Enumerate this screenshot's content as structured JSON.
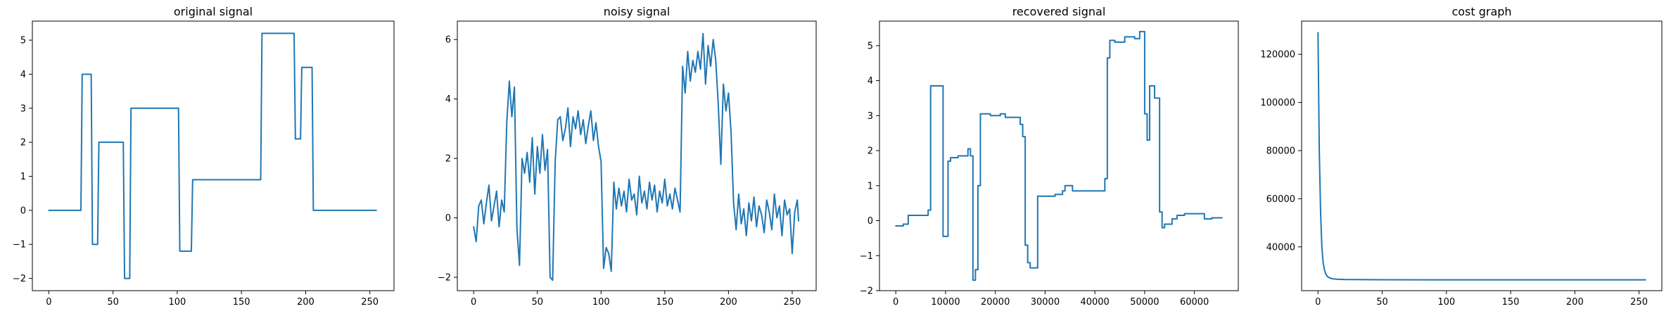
{
  "chart_data": [
    {
      "type": "line",
      "title": "original signal",
      "color": "#1f77b4",
      "xlim": [
        -12.8,
        268.8
      ],
      "ylim": [
        -2.36,
        5.56
      ],
      "xticks": [
        0,
        50,
        100,
        150,
        200,
        250
      ],
      "yticks": [
        -2,
        -1,
        0,
        1,
        2,
        3,
        4,
        5
      ],
      "grid": false,
      "x": [
        0,
        25,
        26,
        33,
        34,
        38,
        39,
        58,
        59,
        63,
        64,
        101,
        102,
        111,
        112,
        165,
        166,
        191,
        192,
        196,
        197,
        205,
        206,
        255
      ],
      "y": [
        0,
        0,
        4,
        4,
        -1,
        -1,
        2,
        2,
        -2,
        -2,
        3,
        3,
        -1.2,
        -1.2,
        0.9,
        0.9,
        5.2,
        5.2,
        2.1,
        2.1,
        4.2,
        4.2,
        0,
        0
      ]
    },
    {
      "type": "line",
      "title": "noisy signal",
      "color": "#1f77b4",
      "xlim": [
        -12.8,
        268.8
      ],
      "ylim": [
        -2.45,
        6.62
      ],
      "xticks": [
        0,
        50,
        100,
        150,
        200,
        250
      ],
      "yticks": [
        -2,
        0,
        2,
        4,
        6
      ],
      "grid": false,
      "x": [
        0,
        2,
        4,
        6,
        8,
        10,
        12,
        14,
        16,
        18,
        20,
        22,
        24,
        26,
        28,
        30,
        32,
        34,
        36,
        38,
        40,
        42,
        44,
        46,
        48,
        50,
        52,
        54,
        56,
        58,
        60,
        62,
        64,
        66,
        68,
        70,
        72,
        74,
        76,
        78,
        80,
        82,
        84,
        86,
        88,
        90,
        92,
        94,
        96,
        98,
        100,
        102,
        104,
        106,
        108,
        110,
        112,
        114,
        116,
        118,
        120,
        122,
        124,
        126,
        128,
        130,
        132,
        134,
        136,
        138,
        140,
        142,
        144,
        146,
        148,
        150,
        152,
        154,
        156,
        158,
        160,
        162,
        164,
        166,
        168,
        170,
        172,
        174,
        176,
        178,
        180,
        182,
        184,
        186,
        188,
        190,
        192,
        194,
        196,
        198,
        200,
        202,
        204,
        206,
        208,
        210,
        212,
        214,
        216,
        218,
        220,
        222,
        224,
        226,
        228,
        230,
        232,
        234,
        236,
        238,
        240,
        242,
        244,
        246,
        248,
        250,
        252,
        254,
        255
      ],
      "y": [
        -0.3,
        -0.8,
        0.4,
        0.6,
        -0.2,
        0.5,
        1.1,
        -0.1,
        0.4,
        0.9,
        -0.3,
        0.6,
        0.2,
        3.2,
        4.6,
        3.4,
        4.4,
        -0.4,
        -1.6,
        2.0,
        1.5,
        2.2,
        1.2,
        2.7,
        0.8,
        2.4,
        1.5,
        2.8,
        1.6,
        2.3,
        -2.0,
        -2.1,
        1.9,
        3.3,
        3.4,
        2.6,
        3.0,
        3.7,
        2.4,
        3.4,
        3.0,
        3.6,
        2.8,
        3.3,
        2.5,
        3.1,
        3.6,
        2.6,
        3.2,
        2.4,
        1.9,
        -1.7,
        -1.0,
        -1.2,
        -1.8,
        1.2,
        0.3,
        1.0,
        0.4,
        0.9,
        0.2,
        1.3,
        0.6,
        0.8,
        0.1,
        1.4,
        0.5,
        0.9,
        0.3,
        1.2,
        0.6,
        1.1,
        0.2,
        0.9,
        0.5,
        1.3,
        0.4,
        0.8,
        0.3,
        1.0,
        0.6,
        0.2,
        5.1,
        4.2,
        5.6,
        4.6,
        5.3,
        4.9,
        5.6,
        5.0,
        6.2,
        4.5,
        5.8,
        5.1,
        6.0,
        5.3,
        3.8,
        1.8,
        4.5,
        3.6,
        4.2,
        2.9,
        0.5,
        -0.4,
        0.8,
        -0.2,
        0.3,
        -0.6,
        0.5,
        -0.1,
        0.7,
        -0.3,
        0.4,
        0.1,
        -0.5,
        0.6,
        0.2,
        -0.4,
        0.8,
        0.0,
        0.4,
        -0.6,
        0.6,
        0.1,
        0.3,
        -1.2,
        0.2,
        0.6,
        -0.1
      ],
      "series_note": ""
    },
    {
      "type": "line",
      "title": "recovered signal",
      "color": "#1f77b4",
      "xlim": [
        -3277,
        68813
      ],
      "ylim": [
        -2.0,
        5.7
      ],
      "xticks": [
        0,
        10000,
        20000,
        30000,
        40000,
        50000,
        60000
      ],
      "yticks": [
        -2,
        -1,
        0,
        1,
        2,
        3,
        4,
        5
      ],
      "grid": false,
      "x": [
        0,
        1500,
        1500,
        2500,
        2500,
        6500,
        6500,
        7000,
        7000,
        9500,
        9500,
        10500,
        10500,
        11000,
        11000,
        12500,
        12500,
        14500,
        14500,
        15000,
        15000,
        15500,
        15500,
        16000,
        16000,
        16500,
        16500,
        17000,
        17000,
        19000,
        19000,
        21000,
        21000,
        22000,
        22000,
        25000,
        25000,
        25500,
        25500,
        26000,
        26000,
        26500,
        26500,
        27000,
        27000,
        28500,
        28500,
        32000,
        32000,
        33500,
        33500,
        34000,
        34000,
        35500,
        35500,
        42000,
        42000,
        42500,
        42500,
        43000,
        43000,
        44000,
        44000,
        46000,
        46000,
        48000,
        48000,
        49000,
        49000,
        50000,
        50000,
        50500,
        50500,
        51000,
        51000,
        52000,
        52000,
        53000,
        53000,
        53500,
        53500,
        54000,
        54000,
        55500,
        55500,
        56500,
        56500,
        58000,
        58000,
        62000,
        62000,
        63500,
        63500,
        65535
      ],
      "y": [
        -0.15,
        -0.15,
        -0.1,
        -0.1,
        0.15,
        0.15,
        0.3,
        0.3,
        3.85,
        3.85,
        -0.45,
        -0.45,
        1.7,
        1.7,
        1.8,
        1.8,
        1.85,
        1.85,
        2.05,
        2.05,
        1.85,
        1.85,
        -1.7,
        -1.7,
        -1.4,
        -1.4,
        1.0,
        1.0,
        3.05,
        3.05,
        3.0,
        3.0,
        3.05,
        3.05,
        2.95,
        2.95,
        2.75,
        2.75,
        2.4,
        2.4,
        -0.7,
        -0.7,
        -1.2,
        -1.2,
        -1.35,
        -1.35,
        0.7,
        0.7,
        0.75,
        0.75,
        0.85,
        0.85,
        1.0,
        1.0,
        0.85,
        0.85,
        1.2,
        1.2,
        4.65,
        4.65,
        5.15,
        5.15,
        5.1,
        5.1,
        5.25,
        5.25,
        5.2,
        5.2,
        5.4,
        5.4,
        3.05,
        3.05,
        2.3,
        2.3,
        3.85,
        3.85,
        3.5,
        3.5,
        0.25,
        0.25,
        -0.2,
        -0.2,
        -0.1,
        -0.1,
        0.05,
        0.05,
        0.15,
        0.15,
        0.2,
        0.2,
        0.05,
        0.05,
        0.08,
        0.08
      ]
    },
    {
      "type": "line",
      "title": "cost graph",
      "color": "#1f77b4",
      "xlim": [
        -12.75,
        267.75
      ],
      "ylim": [
        21800,
        133800
      ],
      "xticks": [
        0,
        50,
        100,
        150,
        200,
        250
      ],
      "yticks": [
        40000,
        60000,
        80000,
        100000,
        120000
      ],
      "grid": false,
      "x": [
        0,
        1,
        2,
        3,
        4,
        5,
        6,
        7,
        8,
        10,
        12,
        15,
        20,
        30,
        50,
        100,
        150,
        200,
        255
      ],
      "y": [
        129000,
        80000,
        55000,
        40000,
        33500,
        30500,
        28800,
        27900,
        27400,
        26900,
        26700,
        26550,
        26450,
        26400,
        26350,
        26300,
        26300,
        26300,
        26300
      ]
    }
  ]
}
